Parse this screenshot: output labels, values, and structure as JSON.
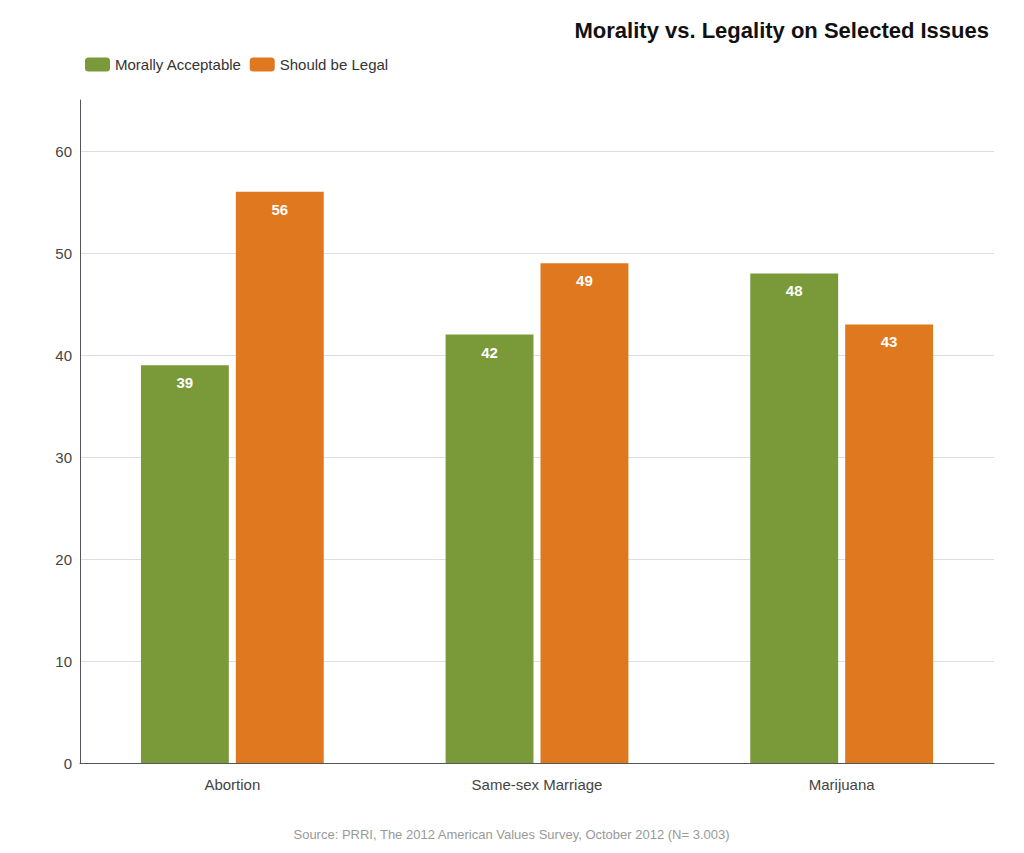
{
  "chart_data": {
    "type": "bar",
    "title": "Morality vs. Legality on Selected Issues",
    "categories": [
      "Abortion",
      "Same-sex Marriage",
      "Marijuana"
    ],
    "series": [
      {
        "name": "Morally Acceptable",
        "color": "#7a9a3a",
        "values": [
          39,
          42,
          48
        ]
      },
      {
        "name": "Should be Legal",
        "color": "#e07820",
        "values": [
          56,
          49,
          43
        ]
      }
    ],
    "ylim": [
      0,
      65
    ],
    "yticks": [
      0,
      10,
      20,
      30,
      40,
      50,
      60
    ],
    "grid": true,
    "legend": "upper left",
    "data_labels": true,
    "annotations": [
      "Source: PRRI, The 2012 American Values Survey, October 2012 (N= 3.003)"
    ]
  }
}
